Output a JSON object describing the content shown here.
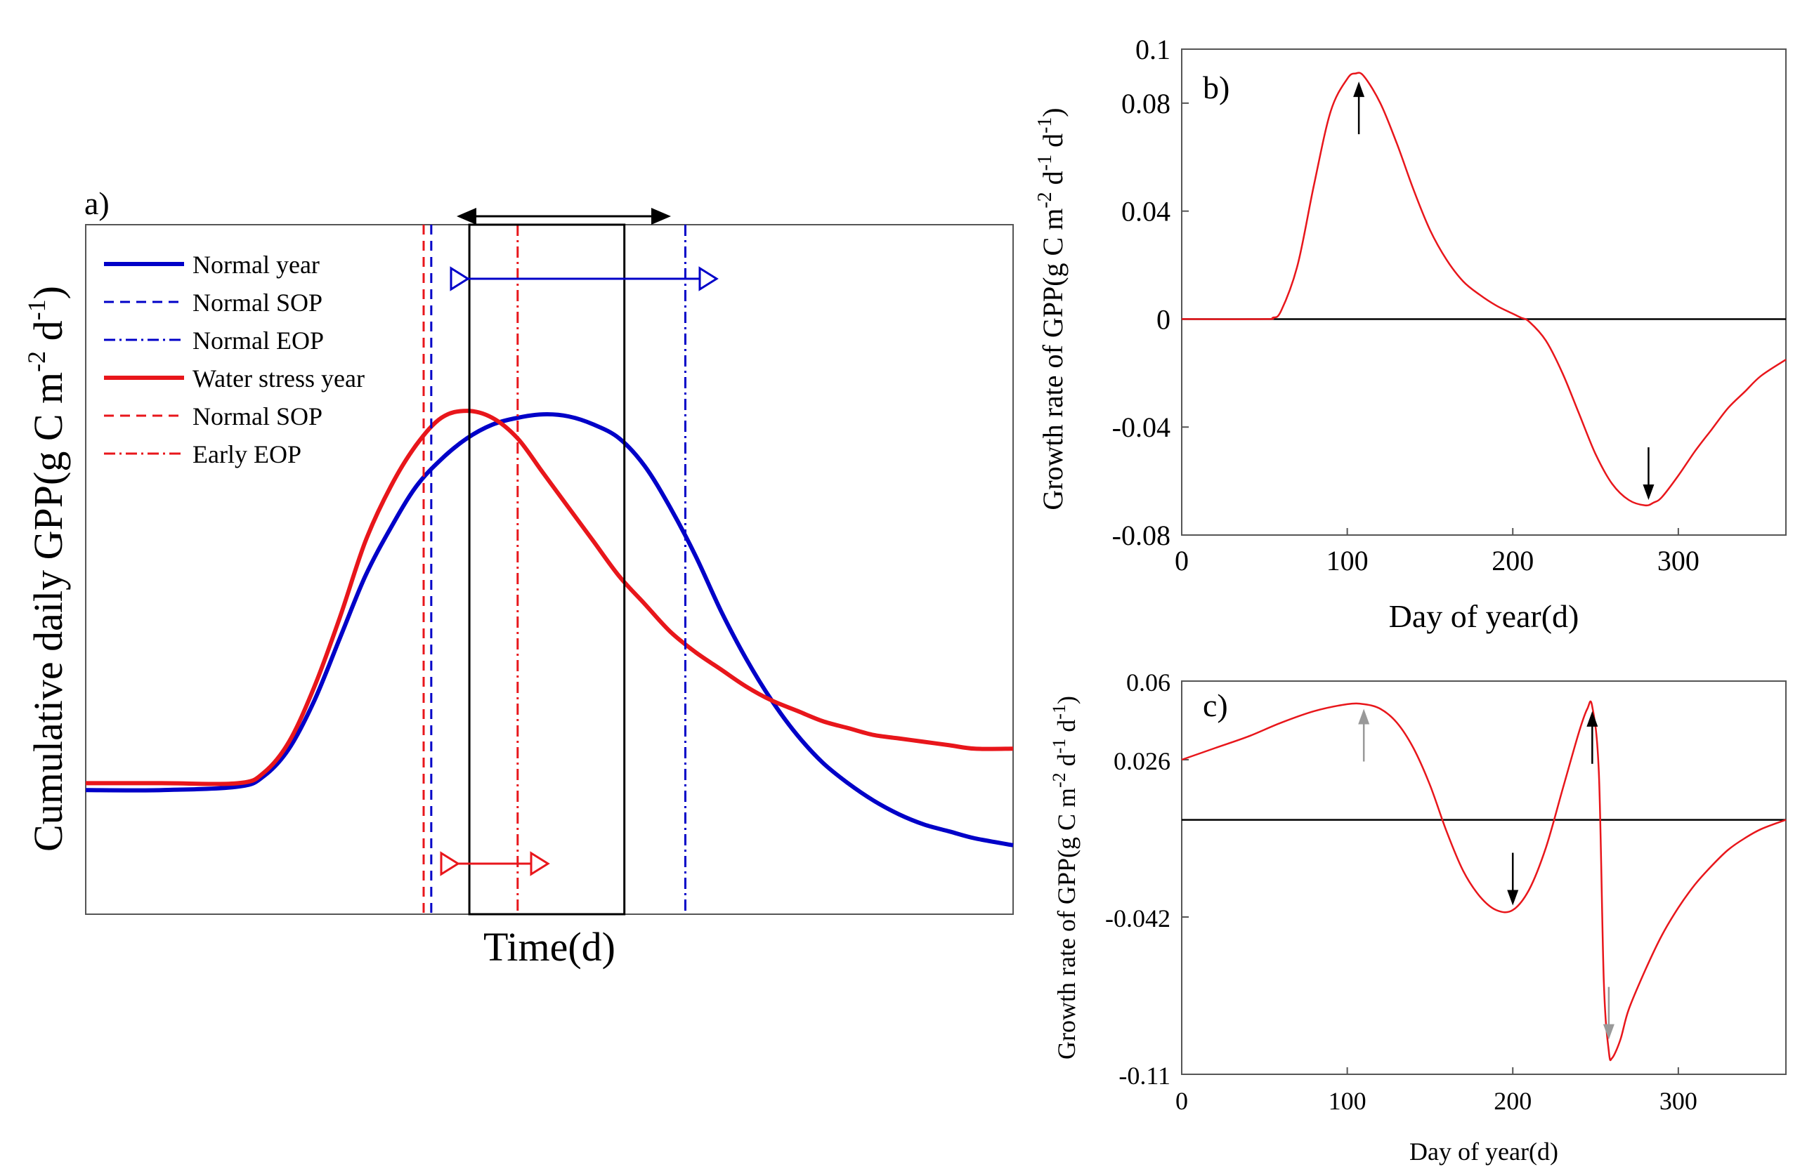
{
  "chart_data": [
    {
      "panel": "a)",
      "type": "line",
      "xlabel": "Time(d)",
      "ylabel": "Cumulative daily GPP(g C m-2 d-1)",
      "ylabel_parts": {
        "base": "Cumulative daily GPP(g C m",
        "sup1": "-2",
        "mid": " d",
        "sup2": "-1",
        "end": ")"
      },
      "xlim": [
        0,
        365
      ],
      "ylim": [
        0,
        1
      ],
      "series": [
        {
          "name": "Normal year",
          "color": "#0000c8",
          "style": "solid",
          "x": [
            0,
            30,
            60,
            70,
            80,
            90,
            100,
            110,
            120,
            130,
            140,
            150,
            160,
            170,
            180,
            190,
            200,
            210,
            220,
            230,
            240,
            250,
            260,
            270,
            280,
            290,
            300,
            310,
            320,
            330,
            340,
            350,
            365
          ],
          "values": [
            0.18,
            0.18,
            0.185,
            0.2,
            0.24,
            0.31,
            0.4,
            0.49,
            0.56,
            0.62,
            0.66,
            0.69,
            0.71,
            0.72,
            0.725,
            0.722,
            0.71,
            0.69,
            0.65,
            0.59,
            0.52,
            0.44,
            0.37,
            0.31,
            0.26,
            0.22,
            0.19,
            0.165,
            0.145,
            0.13,
            0.12,
            0.11,
            0.1
          ]
        },
        {
          "name": "Water stress year",
          "color": "#e8161b",
          "style": "solid",
          "x": [
            0,
            30,
            60,
            70,
            80,
            90,
            100,
            110,
            120,
            130,
            140,
            150,
            160,
            170,
            180,
            190,
            200,
            210,
            220,
            230,
            240,
            250,
            260,
            270,
            280,
            290,
            300,
            310,
            320,
            330,
            340,
            350,
            365
          ],
          "values": [
            0.19,
            0.19,
            0.19,
            0.205,
            0.25,
            0.33,
            0.43,
            0.54,
            0.62,
            0.68,
            0.72,
            0.73,
            0.72,
            0.69,
            0.64,
            0.59,
            0.54,
            0.49,
            0.45,
            0.41,
            0.38,
            0.355,
            0.33,
            0.31,
            0.295,
            0.28,
            0.27,
            0.26,
            0.255,
            0.25,
            0.245,
            0.24,
            0.24
          ]
        }
      ],
      "legend": [
        {
          "label": "Normal year",
          "color": "#0000c8",
          "style": "solid"
        },
        {
          "label": "Normal SOP",
          "color": "#0000c8",
          "style": "dashed"
        },
        {
          "label": "Normal EOP",
          "color": "#0000c8",
          "style": "dashdot"
        },
        {
          "label": "Water stress year",
          "color": "#e8161b",
          "style": "solid"
        },
        {
          "label": "Normal SOP",
          "color": "#e8161b",
          "style": "dashed"
        },
        {
          "label": "Early EOP",
          "color": "#e8161b",
          "style": "dashdot"
        }
      ],
      "legend_position": "top-left",
      "vlines": [
        {
          "x": 133,
          "color": "#e8161b",
          "style": "dashed"
        },
        {
          "x": 136,
          "color": "#0000c8",
          "style": "dashed"
        },
        {
          "x": 170,
          "color": "#e8161b",
          "style": "dashdot"
        },
        {
          "x": 236,
          "color": "#0000c8",
          "style": "dashdot"
        }
      ],
      "boxes": [
        {
          "x0": 151,
          "x1": 212
        }
      ]
    },
    {
      "panel": "b)",
      "type": "line",
      "xlabel": "Day of year(d)",
      "ylabel": "Growth rate of GPP(g C m-2 d-1 d-1)",
      "ylabel_parts": {
        "base": "Growth rate of GPP(g C m",
        "sup1": "-2",
        "mid": " d",
        "sup2": "-1",
        "mid2": " d",
        "sup3": "-1",
        "end": ")"
      },
      "xlim": [
        0,
        365
      ],
      "ylim": [
        -0.08,
        0.1
      ],
      "xticks": [
        "0",
        "100",
        "200",
        "300"
      ],
      "xtick_values": [
        0,
        100,
        200,
        300
      ],
      "yticks": [
        "0.1",
        "0.08",
        "0.04",
        "0",
        "-0.04",
        "-0.08"
      ],
      "ytick_values": [
        0.1,
        0.08,
        0.04,
        0,
        -0.04,
        -0.08
      ],
      "series": [
        {
          "name": "Growth rate",
          "color": "#e8161b",
          "x": [
            0,
            50,
            55,
            60,
            70,
            80,
            90,
            100,
            105,
            110,
            120,
            130,
            140,
            150,
            160,
            170,
            180,
            190,
            200,
            205,
            210,
            220,
            230,
            240,
            250,
            260,
            270,
            280,
            285,
            290,
            300,
            310,
            320,
            330,
            340,
            350,
            365
          ],
          "values": [
            0,
            0,
            0.0005,
            0.003,
            0.02,
            0.05,
            0.077,
            0.089,
            0.091,
            0.09,
            0.08,
            0.065,
            0.048,
            0.033,
            0.022,
            0.014,
            0.009,
            0.005,
            0.002,
            0.0005,
            -0.001,
            -0.008,
            -0.02,
            -0.035,
            -0.05,
            -0.061,
            -0.067,
            -0.069,
            -0.068,
            -0.066,
            -0.058,
            -0.049,
            -0.041,
            -0.033,
            -0.027,
            -0.021,
            -0.015
          ]
        }
      ],
      "annotations": [
        {
          "type": "arrow-up",
          "x": 107,
          "y": 0.088
        },
        {
          "type": "arrow-down",
          "x": 282,
          "y": -0.067
        }
      ]
    },
    {
      "panel": "c)",
      "type": "line",
      "xlabel": "Day of year(d)",
      "ylabel": "Growth rate of GPP(g C m-2 d-1 d-1)",
      "ylabel_parts": {
        "base": "Growth rate of GPP(g C m",
        "sup1": "-2",
        "mid": " d",
        "sup2": "-1",
        "mid2": " d",
        "sup3": "-1",
        "end": ")"
      },
      "xlim": [
        0,
        365
      ],
      "ylim": [
        -0.11,
        0.06
      ],
      "xticks": [
        "0",
        "100",
        "200",
        "300"
      ],
      "xtick_values": [
        0,
        100,
        200,
        300
      ],
      "yticks": [
        "0.06",
        "0.026",
        "-0.042",
        "-0.11"
      ],
      "ytick_values": [
        0.06,
        0.026,
        -0.042,
        -0.11
      ],
      "series": [
        {
          "name": "Growth rate",
          "color": "#e8161b",
          "x": [
            0,
            20,
            40,
            60,
            80,
            100,
            110,
            120,
            130,
            140,
            150,
            160,
            170,
            180,
            190,
            200,
            210,
            220,
            230,
            240,
            245,
            248,
            252,
            255,
            258,
            260,
            265,
            270,
            280,
            290,
            300,
            310,
            320,
            330,
            340,
            350,
            365
          ],
          "values": [
            0.026,
            0.031,
            0.036,
            0.042,
            0.047,
            0.05,
            0.05,
            0.048,
            0.042,
            0.031,
            0.015,
            -0.005,
            -0.022,
            -0.033,
            -0.039,
            -0.039,
            -0.03,
            -0.012,
            0.013,
            0.038,
            0.048,
            0.049,
            0.02,
            -0.07,
            -0.1,
            -0.103,
            -0.095,
            -0.082,
            -0.065,
            -0.05,
            -0.038,
            -0.028,
            -0.02,
            -0.013,
            -0.008,
            -0.004,
            0
          ]
        }
      ],
      "annotations": [
        {
          "type": "arrow-up",
          "x": 110,
          "y": 0.048,
          "color": "#999999"
        },
        {
          "type": "arrow-down",
          "x": 200,
          "y": -0.037
        },
        {
          "type": "arrow-up",
          "x": 248,
          "y": 0.047
        },
        {
          "type": "arrow-down",
          "x": 258,
          "y": -0.095,
          "color": "#999999"
        }
      ]
    }
  ]
}
